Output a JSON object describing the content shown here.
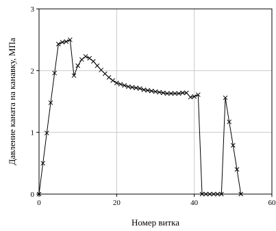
{
  "chart_data": {
    "type": "line",
    "title": "",
    "xlabel": "Номер витка",
    "ylabel": "Давление каната на канавку, МПа",
    "xlim": [
      0,
      60
    ],
    "ylim": [
      0,
      3
    ],
    "x_ticks": [
      "0",
      "20",
      "40",
      "60"
    ],
    "y_ticks": [
      "0",
      "1",
      "2",
      "3"
    ],
    "grid": true,
    "legend": "none",
    "marker": "x",
    "line_color": "#000000",
    "grid_color": "#c8c8c8",
    "series": [
      {
        "x": [
          0,
          1,
          2,
          3,
          4,
          5,
          6,
          7,
          8,
          9,
          10,
          11,
          12,
          13,
          14,
          15,
          16,
          17,
          18,
          19,
          20,
          21,
          22,
          23,
          24,
          25,
          26,
          27,
          28,
          29,
          30,
          31,
          32,
          33,
          34,
          35,
          36,
          37,
          38,
          39,
          40,
          41,
          42,
          43,
          44,
          45,
          46,
          47,
          48,
          49,
          50,
          51,
          52
        ],
        "y": [
          0,
          0.5,
          0.99,
          1.48,
          1.96,
          2.43,
          2.46,
          2.47,
          2.5,
          1.92,
          2.08,
          2.18,
          2.23,
          2.2,
          2.15,
          2.08,
          2.01,
          1.95,
          1.89,
          1.84,
          1.8,
          1.78,
          1.76,
          1.74,
          1.73,
          1.72,
          1.71,
          1.69,
          1.68,
          1.67,
          1.66,
          1.65,
          1.64,
          1.63,
          1.63,
          1.63,
          1.63,
          1.64,
          1.64,
          1.57,
          1.58,
          1.61,
          0,
          0,
          0,
          0,
          0,
          0,
          1.56,
          1.17,
          0.79,
          0.4,
          0
        ]
      }
    ]
  }
}
